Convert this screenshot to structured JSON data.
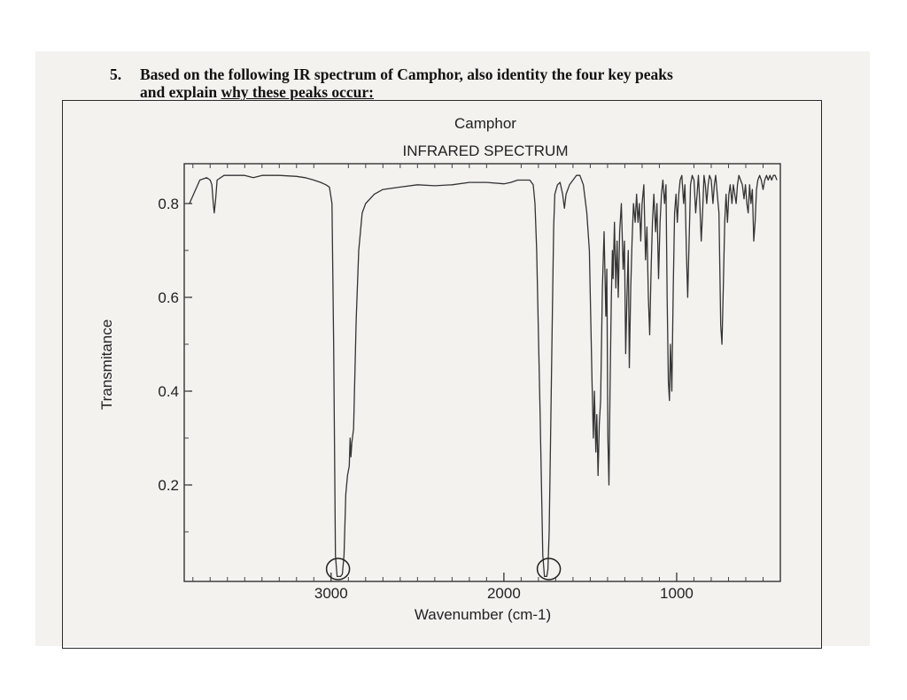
{
  "question": {
    "number": "5.",
    "line1": "Based on the following IR spectrum of Camphor, also identity the four key peaks",
    "line2_prefix": "and explain ",
    "line2_underlined": "why these peaks occur:"
  },
  "chart_data": {
    "type": "line",
    "title": "Camphor",
    "subtitle": "INFRARED SPECTRUM",
    "xlabel": "Wavenumber (cm-1)",
    "ylabel": "Transmitance",
    "xlim": [
      3850,
      400
    ],
    "ylim": [
      0,
      0.88
    ],
    "x_reversed": true,
    "xticks": [
      3000,
      2000,
      1000
    ],
    "yticks": [
      0.2,
      0.4,
      0.6,
      0.8
    ],
    "ytick_labels": [
      "0.2",
      "0.4",
      "0.6",
      "0.8"
    ],
    "grid": false,
    "circled_peaks": [
      {
        "x": 2960,
        "y": 0.01
      },
      {
        "x": 1740,
        "y": 0.01
      }
    ],
    "series": [
      {
        "points": [
          [
            3820,
            0.8
          ],
          [
            3760,
            0.85
          ],
          [
            3720,
            0.855
          ],
          [
            3700,
            0.85
          ],
          [
            3690,
            0.84
          ],
          [
            3682,
            0.8
          ],
          [
            3676,
            0.78
          ],
          [
            3668,
            0.81
          ],
          [
            3660,
            0.85
          ],
          [
            3620,
            0.86
          ],
          [
            3560,
            0.86
          ],
          [
            3500,
            0.86
          ],
          [
            3450,
            0.855
          ],
          [
            3400,
            0.86
          ],
          [
            3300,
            0.86
          ],
          [
            3200,
            0.858
          ],
          [
            3150,
            0.855
          ],
          [
            3100,
            0.85
          ],
          [
            3060,
            0.845
          ],
          [
            3030,
            0.84
          ],
          [
            3010,
            0.835
          ],
          [
            2995,
            0.8
          ],
          [
            2985,
            0.5
          ],
          [
            2975,
            0.05
          ],
          [
            2965,
            0.005
          ],
          [
            2955,
            0.005
          ],
          [
            2945,
            0.005
          ],
          [
            2935,
            0.01
          ],
          [
            2925,
            0.05
          ],
          [
            2915,
            0.18
          ],
          [
            2905,
            0.22
          ],
          [
            2895,
            0.24
          ],
          [
            2890,
            0.3
          ],
          [
            2885,
            0.26
          ],
          [
            2880,
            0.29
          ],
          [
            2870,
            0.32
          ],
          [
            2855,
            0.55
          ],
          [
            2840,
            0.7
          ],
          [
            2820,
            0.78
          ],
          [
            2800,
            0.8
          ],
          [
            2750,
            0.82
          ],
          [
            2700,
            0.83
          ],
          [
            2600,
            0.835
          ],
          [
            2500,
            0.84
          ],
          [
            2400,
            0.838
          ],
          [
            2300,
            0.84
          ],
          [
            2200,
            0.845
          ],
          [
            2100,
            0.845
          ],
          [
            2000,
            0.842
          ],
          [
            1960,
            0.845
          ],
          [
            1920,
            0.85
          ],
          [
            1880,
            0.85
          ],
          [
            1850,
            0.85
          ],
          [
            1830,
            0.84
          ],
          [
            1820,
            0.8
          ],
          [
            1810,
            0.7
          ],
          [
            1790,
            0.35
          ],
          [
            1775,
            0.05
          ],
          [
            1765,
            0.005
          ],
          [
            1752,
            0.005
          ],
          [
            1745,
            0.02
          ],
          [
            1738,
            0.1
          ],
          [
            1730,
            0.3
          ],
          [
            1720,
            0.55
          ],
          [
            1712,
            0.75
          ],
          [
            1705,
            0.82
          ],
          [
            1690,
            0.84
          ],
          [
            1675,
            0.845
          ],
          [
            1660,
            0.82
          ],
          [
            1650,
            0.79
          ],
          [
            1640,
            0.82
          ],
          [
            1620,
            0.84
          ],
          [
            1600,
            0.85
          ],
          [
            1580,
            0.86
          ],
          [
            1560,
            0.86
          ],
          [
            1540,
            0.84
          ],
          [
            1520,
            0.78
          ],
          [
            1505,
            0.7
          ],
          [
            1490,
            0.42
          ],
          [
            1482,
            0.3
          ],
          [
            1476,
            0.4
          ],
          [
            1468,
            0.27
          ],
          [
            1462,
            0.35
          ],
          [
            1455,
            0.22
          ],
          [
            1448,
            0.33
          ],
          [
            1440,
            0.38
          ],
          [
            1430,
            0.62
          ],
          [
            1420,
            0.74
          ],
          [
            1410,
            0.56
          ],
          [
            1404,
            0.66
          ],
          [
            1398,
            0.3
          ],
          [
            1392,
            0.2
          ],
          [
            1386,
            0.4
          ],
          [
            1378,
            0.6
          ],
          [
            1372,
            0.7
          ],
          [
            1368,
            0.64
          ],
          [
            1360,
            0.76
          ],
          [
            1352,
            0.62
          ],
          [
            1345,
            0.72
          ],
          [
            1338,
            0.6
          ],
          [
            1330,
            0.74
          ],
          [
            1320,
            0.8
          ],
          [
            1310,
            0.66
          ],
          [
            1302,
            0.72
          ],
          [
            1295,
            0.48
          ],
          [
            1288,
            0.6
          ],
          [
            1280,
            0.7
          ],
          [
            1274,
            0.45
          ],
          [
            1266,
            0.62
          ],
          [
            1258,
            0.72
          ],
          [
            1250,
            0.8
          ],
          [
            1240,
            0.76
          ],
          [
            1232,
            0.82
          ],
          [
            1224,
            0.76
          ],
          [
            1216,
            0.8
          ],
          [
            1208,
            0.72
          ],
          [
            1200,
            0.8
          ],
          [
            1190,
            0.84
          ],
          [
            1180,
            0.68
          ],
          [
            1172,
            0.75
          ],
          [
            1164,
            0.6
          ],
          [
            1156,
            0.52
          ],
          [
            1148,
            0.66
          ],
          [
            1140,
            0.76
          ],
          [
            1132,
            0.82
          ],
          [
            1122,
            0.74
          ],
          [
            1114,
            0.8
          ],
          [
            1105,
            0.64
          ],
          [
            1096,
            0.76
          ],
          [
            1088,
            0.82
          ],
          [
            1080,
            0.85
          ],
          [
            1070,
            0.8
          ],
          [
            1062,
            0.84
          ],
          [
            1055,
            0.6
          ],
          [
            1048,
            0.42
          ],
          [
            1042,
            0.38
          ],
          [
            1036,
            0.5
          ],
          [
            1028,
            0.4
          ],
          [
            1020,
            0.62
          ],
          [
            1012,
            0.78
          ],
          [
            1004,
            0.82
          ],
          [
            996,
            0.76
          ],
          [
            988,
            0.82
          ],
          [
            980,
            0.85
          ],
          [
            970,
            0.86
          ],
          [
            960,
            0.8
          ],
          [
            952,
            0.84
          ],
          [
            944,
            0.7
          ],
          [
            936,
            0.6
          ],
          [
            928,
            0.72
          ],
          [
            920,
            0.84
          ],
          [
            910,
            0.86
          ],
          [
            900,
            0.85
          ],
          [
            890,
            0.78
          ],
          [
            882,
            0.82
          ],
          [
            874,
            0.86
          ],
          [
            866,
            0.8
          ],
          [
            858,
            0.72
          ],
          [
            850,
            0.78
          ],
          [
            842,
            0.86
          ],
          [
            834,
            0.84
          ],
          [
            826,
            0.8
          ],
          [
            818,
            0.84
          ],
          [
            810,
            0.86
          ],
          [
            800,
            0.85
          ],
          [
            790,
            0.8
          ],
          [
            782,
            0.84
          ],
          [
            774,
            0.86
          ],
          [
            765,
            0.82
          ],
          [
            755,
            0.78
          ],
          [
            745,
            0.54
          ],
          [
            738,
            0.5
          ],
          [
            730,
            0.62
          ],
          [
            722,
            0.76
          ],
          [
            714,
            0.82
          ],
          [
            706,
            0.76
          ],
          [
            698,
            0.82
          ],
          [
            690,
            0.84
          ],
          [
            680,
            0.8
          ],
          [
            672,
            0.84
          ],
          [
            664,
            0.82
          ],
          [
            656,
            0.8
          ],
          [
            648,
            0.84
          ],
          [
            640,
            0.86
          ],
          [
            630,
            0.85
          ],
          [
            620,
            0.84
          ],
          [
            610,
            0.81
          ],
          [
            602,
            0.84
          ],
          [
            594,
            0.8
          ],
          [
            586,
            0.78
          ],
          [
            578,
            0.84
          ],
          [
            570,
            0.8
          ],
          [
            562,
            0.83
          ],
          [
            554,
            0.72
          ],
          [
            546,
            0.76
          ],
          [
            538,
            0.83
          ],
          [
            530,
            0.85
          ],
          [
            520,
            0.86
          ],
          [
            510,
            0.85
          ],
          [
            500,
            0.83
          ],
          [
            490,
            0.85
          ],
          [
            480,
            0.86
          ],
          [
            470,
            0.85
          ],
          [
            460,
            0.86
          ],
          [
            450,
            0.85
          ],
          [
            440,
            0.86
          ],
          [
            430,
            0.86
          ],
          [
            420,
            0.85
          ]
        ]
      }
    ]
  }
}
